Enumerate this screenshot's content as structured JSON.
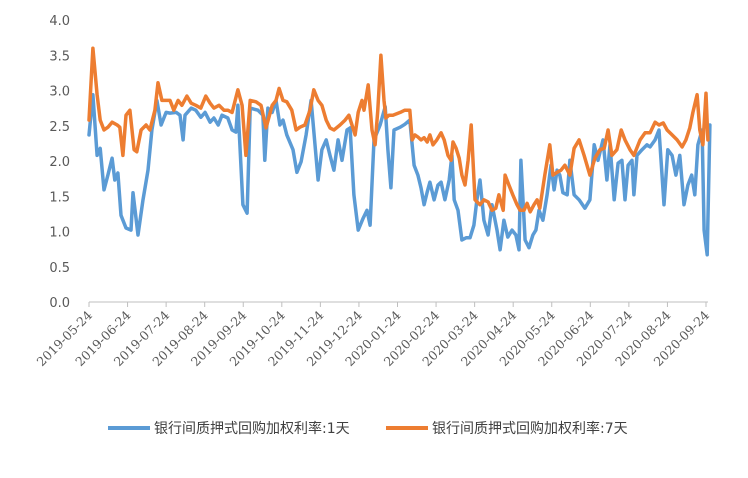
{
  "chart_data": {
    "type": "line",
    "title": "",
    "xlabel": "",
    "ylabel": "",
    "ylim": [
      0,
      4
    ],
    "yticks": [
      "0.0",
      "0.5",
      "1.0",
      "1.5",
      "2.0",
      "2.5",
      "3.0",
      "3.5",
      "4.0"
    ],
    "x_unit": "months since 2019-05-24",
    "xlim": [
      0,
      16.1
    ],
    "xticks": [
      "2019-05-24",
      "2019-06-24",
      "2019-07-24",
      "2019-08-24",
      "2019-09-24",
      "2019-10-24",
      "2019-11-24",
      "2019-12-24",
      "2020-01-24",
      "2020-02-24",
      "2020-03-24",
      "2020-04-24",
      "2020-05-24",
      "2020-06-24",
      "2020-07-24",
      "2020-08-24",
      "2020-09-24"
    ],
    "grid": false,
    "legend_position": "bottom",
    "series": [
      {
        "name": "银行间质押式回购加权利率:1天",
        "color": "#5B9BD5",
        "points": [
          [
            0,
            2.37
          ],
          [
            0.1,
            2.94
          ],
          [
            0.21,
            2.08
          ],
          [
            0.29,
            2.18
          ],
          [
            0.39,
            1.59
          ],
          [
            0.49,
            1.8
          ],
          [
            0.6,
            2.04
          ],
          [
            0.67,
            1.73
          ],
          [
            0.75,
            1.83
          ],
          [
            0.83,
            1.23
          ],
          [
            0.96,
            1.05
          ],
          [
            1.09,
            1.02
          ],
          [
            1.14,
            1.55
          ],
          [
            1.27,
            0.95
          ],
          [
            1.4,
            1.45
          ],
          [
            1.53,
            1.87
          ],
          [
            1.63,
            2.44
          ],
          [
            1.76,
            2.86
          ],
          [
            1.87,
            2.51
          ],
          [
            2.0,
            2.69
          ],
          [
            2.1,
            2.68
          ],
          [
            2.26,
            2.69
          ],
          [
            2.36,
            2.65
          ],
          [
            2.44,
            2.3
          ],
          [
            2.49,
            2.65
          ],
          [
            2.65,
            2.75
          ],
          [
            2.77,
            2.72
          ],
          [
            2.9,
            2.62
          ],
          [
            3.01,
            2.69
          ],
          [
            3.14,
            2.55
          ],
          [
            3.24,
            2.61
          ],
          [
            3.35,
            2.51
          ],
          [
            3.45,
            2.65
          ],
          [
            3.6,
            2.61
          ],
          [
            3.71,
            2.44
          ],
          [
            3.81,
            2.41
          ],
          [
            3.86,
            2.79
          ],
          [
            3.99,
            1.38
          ],
          [
            4.1,
            1.26
          ],
          [
            4.18,
            2.75
          ],
          [
            4.38,
            2.72
          ],
          [
            4.51,
            2.65
          ],
          [
            4.56,
            2.01
          ],
          [
            4.64,
            2.75
          ],
          [
            4.75,
            2.69
          ],
          [
            4.85,
            2.86
          ],
          [
            4.95,
            2.51
          ],
          [
            5.03,
            2.58
          ],
          [
            5.13,
            2.37
          ],
          [
            5.29,
            2.16
          ],
          [
            5.39,
            1.84
          ],
          [
            5.5,
            1.99
          ],
          [
            5.63,
            2.37
          ],
          [
            5.76,
            2.86
          ],
          [
            5.94,
            1.73
          ],
          [
            6.04,
            2.16
          ],
          [
            6.15,
            2.3
          ],
          [
            6.25,
            2.08
          ],
          [
            6.35,
            1.87
          ],
          [
            6.46,
            2.3
          ],
          [
            6.56,
            2.01
          ],
          [
            6.69,
            2.44
          ],
          [
            6.77,
            2.47
          ],
          [
            6.87,
            1.52
          ],
          [
            6.98,
            1.02
          ],
          [
            7.11,
            1.19
          ],
          [
            7.21,
            1.3
          ],
          [
            7.29,
            1.09
          ],
          [
            7.39,
            2.3
          ],
          [
            7.55,
            2.51
          ],
          [
            7.68,
            2.77
          ],
          [
            7.75,
            2.16
          ],
          [
            7.83,
            1.62
          ],
          [
            7.91,
            2.44
          ],
          [
            8.07,
            2.48
          ],
          [
            8.19,
            2.52
          ],
          [
            8.32,
            2.58
          ],
          [
            8.43,
            1.94
          ],
          [
            8.53,
            1.8
          ],
          [
            8.61,
            1.62
          ],
          [
            8.69,
            1.38
          ],
          [
            8.77,
            1.56
          ],
          [
            8.84,
            1.7
          ],
          [
            8.95,
            1.45
          ],
          [
            9.05,
            1.66
          ],
          [
            9.13,
            1.7
          ],
          [
            9.23,
            1.45
          ],
          [
            9.34,
            1.73
          ],
          [
            9.41,
            2.08
          ],
          [
            9.47,
            1.45
          ],
          [
            9.57,
            1.3
          ],
          [
            9.67,
            0.88
          ],
          [
            9.78,
            0.91
          ],
          [
            9.88,
            0.91
          ],
          [
            9.98,
            1.09
          ],
          [
            10.06,
            1.45
          ],
          [
            10.14,
            1.73
          ],
          [
            10.24,
            1.16
          ],
          [
            10.35,
            0.95
          ],
          [
            10.45,
            1.38
          ],
          [
            10.58,
            1.02
          ],
          [
            10.66,
            0.74
          ],
          [
            10.76,
            1.16
          ],
          [
            10.86,
            0.92
          ],
          [
            10.97,
            1.02
          ],
          [
            11.07,
            0.95
          ],
          [
            11.15,
            0.74
          ],
          [
            11.2,
            2.01
          ],
          [
            11.31,
            0.88
          ],
          [
            11.41,
            0.77
          ],
          [
            11.51,
            0.95
          ],
          [
            11.59,
            1.02
          ],
          [
            11.67,
            1.3
          ],
          [
            11.77,
            1.16
          ],
          [
            11.88,
            1.52
          ],
          [
            11.98,
            1.94
          ],
          [
            12.06,
            1.59
          ],
          [
            12.14,
            1.87
          ],
          [
            12.21,
            1.8
          ],
          [
            12.29,
            1.55
          ],
          [
            12.4,
            1.52
          ],
          [
            12.47,
            2.01
          ],
          [
            12.58,
            1.52
          ],
          [
            12.71,
            1.45
          ],
          [
            12.86,
            1.33
          ],
          [
            12.99,
            1.45
          ],
          [
            13.1,
            2.23
          ],
          [
            13.2,
            2.01
          ],
          [
            13.33,
            2.3
          ],
          [
            13.43,
            1.73
          ],
          [
            13.51,
            2.23
          ],
          [
            13.62,
            1.45
          ],
          [
            13.72,
            1.97
          ],
          [
            13.82,
            2.01
          ],
          [
            13.9,
            1.45
          ],
          [
            13.98,
            1.94
          ],
          [
            14.08,
            2.01
          ],
          [
            14.13,
            1.52
          ],
          [
            14.21,
            2.08
          ],
          [
            14.34,
            2.16
          ],
          [
            14.47,
            2.23
          ],
          [
            14.55,
            2.2
          ],
          [
            14.68,
            2.3
          ],
          [
            14.78,
            2.44
          ],
          [
            14.91,
            1.38
          ],
          [
            15.01,
            2.16
          ],
          [
            15.12,
            2.08
          ],
          [
            15.22,
            1.8
          ],
          [
            15.32,
            2.08
          ],
          [
            15.43,
            1.38
          ],
          [
            15.53,
            1.66
          ],
          [
            15.63,
            1.8
          ],
          [
            15.71,
            1.52
          ],
          [
            15.79,
            2.23
          ],
          [
            15.9,
            2.44
          ],
          [
            15.95,
            1.02
          ],
          [
            16.03,
            0.67
          ],
          [
            16.1,
            2.51
          ]
        ]
      },
      {
        "name": "银行间质押式回购加权利率:7天",
        "color": "#ED7D31",
        "points": [
          [
            0,
            2.58
          ],
          [
            0.1,
            3.6
          ],
          [
            0.21,
            2.94
          ],
          [
            0.29,
            2.58
          ],
          [
            0.39,
            2.44
          ],
          [
            0.49,
            2.48
          ],
          [
            0.6,
            2.55
          ],
          [
            0.73,
            2.51
          ],
          [
            0.8,
            2.48
          ],
          [
            0.88,
            2.08
          ],
          [
            0.96,
            2.65
          ],
          [
            1.06,
            2.72
          ],
          [
            1.17,
            2.16
          ],
          [
            1.24,
            2.13
          ],
          [
            1.35,
            2.44
          ],
          [
            1.48,
            2.51
          ],
          [
            1.58,
            2.44
          ],
          [
            1.71,
            2.72
          ],
          [
            1.79,
            3.11
          ],
          [
            1.89,
            2.86
          ],
          [
            2.0,
            2.86
          ],
          [
            2.1,
            2.86
          ],
          [
            2.2,
            2.72
          ],
          [
            2.31,
            2.86
          ],
          [
            2.41,
            2.79
          ],
          [
            2.54,
            2.92
          ],
          [
            2.65,
            2.82
          ],
          [
            2.77,
            2.79
          ],
          [
            2.9,
            2.75
          ],
          [
            3.03,
            2.92
          ],
          [
            3.14,
            2.82
          ],
          [
            3.24,
            2.75
          ],
          [
            3.37,
            2.79
          ],
          [
            3.5,
            2.72
          ],
          [
            3.6,
            2.72
          ],
          [
            3.71,
            2.69
          ],
          [
            3.86,
            3.01
          ],
          [
            3.97,
            2.79
          ],
          [
            4.07,
            2.08
          ],
          [
            4.18,
            2.86
          ],
          [
            4.33,
            2.84
          ],
          [
            4.46,
            2.79
          ],
          [
            4.59,
            2.47
          ],
          [
            4.75,
            2.79
          ],
          [
            4.85,
            2.86
          ],
          [
            4.93,
            3.03
          ],
          [
            5.03,
            2.86
          ],
          [
            5.13,
            2.84
          ],
          [
            5.26,
            2.72
          ],
          [
            5.37,
            2.44
          ],
          [
            5.47,
            2.48
          ],
          [
            5.6,
            2.51
          ],
          [
            5.73,
            2.72
          ],
          [
            5.83,
            3.01
          ],
          [
            5.94,
            2.86
          ],
          [
            6.04,
            2.79
          ],
          [
            6.15,
            2.58
          ],
          [
            6.25,
            2.47
          ],
          [
            6.35,
            2.44
          ],
          [
            6.51,
            2.51
          ],
          [
            6.64,
            2.58
          ],
          [
            6.74,
            2.65
          ],
          [
            6.9,
            2.37
          ],
          [
            6.98,
            2.69
          ],
          [
            7.08,
            2.86
          ],
          [
            7.13,
            2.72
          ],
          [
            7.24,
            3.08
          ],
          [
            7.34,
            2.44
          ],
          [
            7.42,
            2.23
          ],
          [
            7.49,
            2.72
          ],
          [
            7.57,
            3.5
          ],
          [
            7.65,
            2.86
          ],
          [
            7.7,
            2.61
          ],
          [
            7.78,
            2.65
          ],
          [
            7.88,
            2.65
          ],
          [
            8.07,
            2.69
          ],
          [
            8.19,
            2.72
          ],
          [
            8.32,
            2.72
          ],
          [
            8.38,
            2.3
          ],
          [
            8.45,
            2.37
          ],
          [
            8.53,
            2.34
          ],
          [
            8.61,
            2.3
          ],
          [
            8.69,
            2.33
          ],
          [
            8.77,
            2.27
          ],
          [
            8.84,
            2.37
          ],
          [
            8.92,
            2.23
          ],
          [
            9.02,
            2.3
          ],
          [
            9.13,
            2.4
          ],
          [
            9.21,
            2.3
          ],
          [
            9.31,
            2.08
          ],
          [
            9.39,
            2.01
          ],
          [
            9.44,
            2.27
          ],
          [
            9.52,
            2.18
          ],
          [
            9.6,
            2.04
          ],
          [
            9.67,
            1.8
          ],
          [
            9.75,
            1.66
          ],
          [
            9.83,
            2.01
          ],
          [
            9.91,
            2.51
          ],
          [
            10.01,
            1.45
          ],
          [
            10.14,
            1.38
          ],
          [
            10.24,
            1.45
          ],
          [
            10.35,
            1.42
          ],
          [
            10.45,
            1.3
          ],
          [
            10.55,
            1.33
          ],
          [
            10.63,
            1.52
          ],
          [
            10.74,
            1.3
          ],
          [
            10.79,
            1.8
          ],
          [
            10.89,
            1.66
          ],
          [
            10.99,
            1.52
          ],
          [
            11.1,
            1.38
          ],
          [
            11.18,
            1.3
          ],
          [
            11.28,
            1.3
          ],
          [
            11.36,
            1.4
          ],
          [
            11.44,
            1.28
          ],
          [
            11.54,
            1.38
          ],
          [
            11.62,
            1.45
          ],
          [
            11.69,
            1.33
          ],
          [
            11.82,
            1.8
          ],
          [
            11.95,
            2.23
          ],
          [
            12.03,
            1.8
          ],
          [
            12.14,
            1.84
          ],
          [
            12.24,
            1.87
          ],
          [
            12.34,
            1.94
          ],
          [
            12.47,
            1.8
          ],
          [
            12.58,
            2.18
          ],
          [
            12.71,
            2.3
          ],
          [
            12.84,
            2.08
          ],
          [
            12.99,
            1.8
          ],
          [
            13.12,
            2.04
          ],
          [
            13.25,
            2.16
          ],
          [
            13.36,
            2.18
          ],
          [
            13.46,
            2.44
          ],
          [
            13.56,
            2.08
          ],
          [
            13.69,
            2.16
          ],
          [
            13.8,
            2.44
          ],
          [
            13.9,
            2.3
          ],
          [
            14.03,
            2.16
          ],
          [
            14.13,
            2.08
          ],
          [
            14.29,
            2.3
          ],
          [
            14.42,
            2.4
          ],
          [
            14.55,
            2.4
          ],
          [
            14.68,
            2.55
          ],
          [
            14.78,
            2.51
          ],
          [
            14.89,
            2.54
          ],
          [
            14.99,
            2.44
          ],
          [
            15.12,
            2.37
          ],
          [
            15.25,
            2.3
          ],
          [
            15.38,
            2.2
          ],
          [
            15.48,
            2.3
          ],
          [
            15.58,
            2.47
          ],
          [
            15.66,
            2.69
          ],
          [
            15.77,
            2.94
          ],
          [
            15.84,
            2.44
          ],
          [
            15.92,
            2.23
          ],
          [
            16.0,
            2.96
          ],
          [
            16.05,
            2.3
          ]
        ]
      }
    ]
  }
}
